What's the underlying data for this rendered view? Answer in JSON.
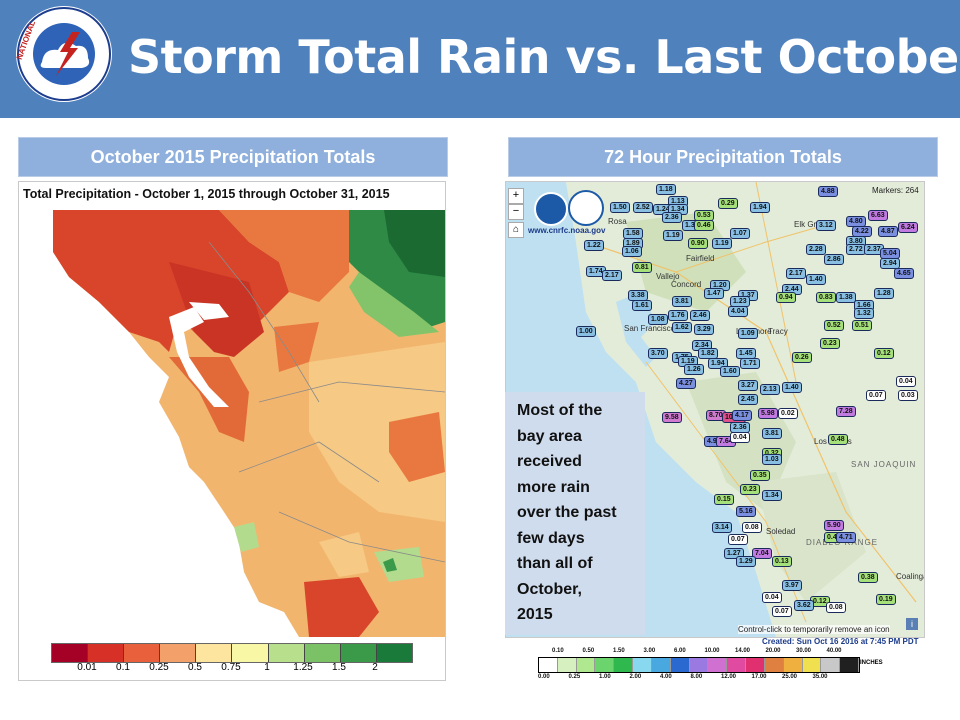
{
  "slide": {
    "title": "Storm Total Rain vs. Last October",
    "logo_text": "NATIONAL WEATHER SERVICE"
  },
  "left_panel": {
    "label": "October 2015 Precipitation Totals",
    "map_title": "Total Precipitation - October 1, 2015 through October 31, 2015",
    "legend_labels": [
      "0.01",
      "0.1",
      "0.25",
      "0.5",
      "0.75",
      "1",
      "1.25",
      "1.5",
      "2"
    ],
    "legend_colors": [
      "#a50026",
      "#d73027",
      "#e8603c",
      "#f4a06a",
      "#fde5a0",
      "#f7f7a6",
      "#b8e08c",
      "#7ac265",
      "#3a9a4a",
      "#1a7a3a"
    ]
  },
  "right_panel": {
    "label": "72 Hour Precipitation Totals",
    "markers_label": "Markers: 264",
    "source_url": "www.cnrfc.noaa.gov",
    "hint": "Control-click to temporarily remove an icon",
    "created": "Created: Sun Oct 16 2016 at 7:45 PM PDT",
    "callout_lines": [
      "Most of the",
      "bay area",
      "received",
      "more rain",
      "over the past",
      "few days",
      "than  all of",
      "October,",
      "2015"
    ],
    "place_labels": [
      "Rosa",
      "Vallejo",
      "Concord",
      "San Francisco",
      "Livermore",
      "Tracy",
      "Elk Grove",
      "Fairfield",
      "Soledad",
      "DIABLO RANGE",
      "SAN JOAQUIN",
      "Coalinga",
      "Los Banos"
    ],
    "scale_top": [
      "0.10",
      "0.50",
      "1.50",
      "3.00",
      "6.00",
      "10.00",
      "14.00",
      "20.00",
      "30.00",
      "40.00"
    ],
    "scale_bottom": [
      "0.00",
      "0.25",
      "1.00",
      "2.00",
      "4.00",
      "8.00",
      "12.00",
      "17.00",
      "25.00",
      "35.00"
    ],
    "scale_unit": "INCHES",
    "zoom_in": "+",
    "zoom_out": "−",
    "info": "i",
    "markers": [
      {
        "v": "1.18",
        "c": "#88bfe3"
      },
      {
        "v": "1.13",
        "c": "#88bfe3"
      },
      {
        "v": "1.50",
        "c": "#88bfe3"
      },
      {
        "v": "2.52",
        "c": "#88bfe3"
      },
      {
        "v": "1.24",
        "c": "#88bfe3"
      },
      {
        "v": "1.34",
        "c": "#88bfe3"
      },
      {
        "v": "0.29",
        "c": "#a6e07a"
      },
      {
        "v": "1.94",
        "c": "#88bfe3"
      },
      {
        "v": "4.88",
        "c": "#7a8fe0"
      },
      {
        "v": "2.36",
        "c": "#88bfe3"
      },
      {
        "v": "0.53",
        "c": "#a6e07a"
      },
      {
        "v": "3.12",
        "c": "#88bfe3"
      },
      {
        "v": "4.80",
        "c": "#7a8fe0"
      },
      {
        "v": "6.63",
        "c": "#c07ae0"
      },
      {
        "v": "1.22",
        "c": "#88bfe3"
      },
      {
        "v": "1.58",
        "c": "#88bfe3"
      },
      {
        "v": "1.89",
        "c": "#88bfe3"
      },
      {
        "v": "1.31",
        "c": "#88bfe3"
      },
      {
        "v": "0.46",
        "c": "#a6e07a"
      },
      {
        "v": "1.07",
        "c": "#88bfe3"
      },
      {
        "v": "4.22",
        "c": "#7a8fe0"
      },
      {
        "v": "4.87",
        "c": "#7a8fe0"
      },
      {
        "v": "6.24",
        "c": "#c07ae0"
      },
      {
        "v": "1.06",
        "c": "#88bfe3"
      },
      {
        "v": "1.19",
        "c": "#88bfe3"
      },
      {
        "v": "0.90",
        "c": "#a6e07a"
      },
      {
        "v": "1.19",
        "c": "#88bfe3"
      },
      {
        "v": "3.80",
        "c": "#88bfe3"
      },
      {
        "v": "2.28",
        "c": "#88bfe3"
      },
      {
        "v": "2.86",
        "c": "#88bfe3"
      },
      {
        "v": "2.72",
        "c": "#88bfe3"
      },
      {
        "v": "2.37",
        "c": "#88bfe3"
      },
      {
        "v": "5.04",
        "c": "#7a8fe0"
      },
      {
        "v": "0.81",
        "c": "#a6e07a"
      },
      {
        "v": "1.74",
        "c": "#88bfe3"
      },
      {
        "v": "2.17",
        "c": "#88bfe3"
      },
      {
        "v": "2.94",
        "c": "#88bfe3"
      },
      {
        "v": "2.17",
        "c": "#88bfe3"
      },
      {
        "v": "1.40",
        "c": "#88bfe3"
      },
      {
        "v": "4.65",
        "c": "#7a8fe0"
      },
      {
        "v": "1.20",
        "c": "#88bfe3"
      },
      {
        "v": "2.44",
        "c": "#88bfe3"
      },
      {
        "v": "1.47",
        "c": "#88bfe3"
      },
      {
        "v": "1.37",
        "c": "#88bfe3"
      },
      {
        "v": "3.38",
        "c": "#88bfe3"
      },
      {
        "v": "1.61",
        "c": "#88bfe3"
      },
      {
        "v": "3.81",
        "c": "#88bfe3"
      },
      {
        "v": "1.23",
        "c": "#88bfe3"
      },
      {
        "v": "0.94",
        "c": "#a6e07a"
      },
      {
        "v": "0.83",
        "c": "#a6e07a"
      },
      {
        "v": "1.38",
        "c": "#88bfe3"
      },
      {
        "v": "1.28",
        "c": "#88bfe3"
      },
      {
        "v": "1.08",
        "c": "#88bfe3"
      },
      {
        "v": "1.76",
        "c": "#88bfe3"
      },
      {
        "v": "2.46",
        "c": "#88bfe3"
      },
      {
        "v": "4.04",
        "c": "#88bfe3"
      },
      {
        "v": "1.66",
        "c": "#88bfe3"
      },
      {
        "v": "1.32",
        "c": "#88bfe3"
      },
      {
        "v": "1.00",
        "c": "#88bfe3"
      },
      {
        "v": "1.62",
        "c": "#88bfe3"
      },
      {
        "v": "3.29",
        "c": "#88bfe3"
      },
      {
        "v": "0.52",
        "c": "#a6e07a"
      },
      {
        "v": "0.51",
        "c": "#a6e07a"
      },
      {
        "v": "1.09",
        "c": "#88bfe3"
      },
      {
        "v": "2.34",
        "c": "#88bfe3"
      },
      {
        "v": "0.23",
        "c": "#a6e07a"
      },
      {
        "v": "3.70",
        "c": "#88bfe3"
      },
      {
        "v": "1.82",
        "c": "#88bfe3"
      },
      {
        "v": "1.45",
        "c": "#88bfe3"
      },
      {
        "v": "0.12",
        "c": "#a6e07a"
      },
      {
        "v": "1.75",
        "c": "#88bfe3"
      },
      {
        "v": "1.19",
        "c": "#88bfe3"
      },
      {
        "v": "1.94",
        "c": "#88bfe3"
      },
      {
        "v": "1.71",
        "c": "#88bfe3"
      },
      {
        "v": "0.26",
        "c": "#a6e07a"
      },
      {
        "v": "1.26",
        "c": "#88bfe3"
      },
      {
        "v": "1.60",
        "c": "#88bfe3"
      },
      {
        "v": "0.04",
        "c": "#ffffff"
      },
      {
        "v": "4.27",
        "c": "#7a8fe0"
      },
      {
        "v": "3.27",
        "c": "#88bfe3"
      },
      {
        "v": "2.13",
        "c": "#88bfe3"
      },
      {
        "v": "1.40",
        "c": "#88bfe3"
      },
      {
        "v": "0.07",
        "c": "#ffffff"
      },
      {
        "v": "0.03",
        "c": "#ffffff"
      },
      {
        "v": "2.45",
        "c": "#88bfe3"
      },
      {
        "v": "9.58",
        "c": "#d07ad0"
      },
      {
        "v": "8.70",
        "c": "#d07ad0"
      },
      {
        "v": "10.95",
        "c": "#e0508a"
      },
      {
        "v": "4.17",
        "c": "#7a8fe0"
      },
      {
        "v": "5.98",
        "c": "#c07ae0"
      },
      {
        "v": "0.02",
        "c": "#ffffff"
      },
      {
        "v": "7.28",
        "c": "#c07ae0"
      },
      {
        "v": "2.36",
        "c": "#88bfe3"
      },
      {
        "v": "3.81",
        "c": "#88bfe3"
      },
      {
        "v": "4.94",
        "c": "#7a8fe0"
      },
      {
        "v": "7.64",
        "c": "#c07ae0"
      },
      {
        "v": "0.04",
        "c": "#ffffff"
      },
      {
        "v": "0.48",
        "c": "#a6e07a"
      },
      {
        "v": "0.32",
        "c": "#a6e07a"
      },
      {
        "v": "1.03",
        "c": "#88bfe3"
      },
      {
        "v": "0.35",
        "c": "#a6e07a"
      },
      {
        "v": "0.23",
        "c": "#a6e07a"
      },
      {
        "v": "1.34",
        "c": "#88bfe3"
      },
      {
        "v": "0.15",
        "c": "#a6e07a"
      },
      {
        "v": "5.16",
        "c": "#7a8fe0"
      },
      {
        "v": "3.14",
        "c": "#88bfe3"
      },
      {
        "v": "0.08",
        "c": "#ffffff"
      },
      {
        "v": "5.90",
        "c": "#c07ae0"
      },
      {
        "v": "0.07",
        "c": "#ffffff"
      },
      {
        "v": "0.41",
        "c": "#a6e07a"
      },
      {
        "v": "4.71",
        "c": "#7a8fe0"
      },
      {
        "v": "1.27",
        "c": "#88bfe3"
      },
      {
        "v": "7.04",
        "c": "#c07ae0"
      },
      {
        "v": "1.29",
        "c": "#88bfe3"
      },
      {
        "v": "0.13",
        "c": "#a6e07a"
      },
      {
        "v": "0.38",
        "c": "#a6e07a"
      },
      {
        "v": "3.97",
        "c": "#88bfe3"
      },
      {
        "v": "0.04",
        "c": "#ffffff"
      },
      {
        "v": "0.12",
        "c": "#a6e07a"
      },
      {
        "v": "0.19",
        "c": "#a6e07a"
      },
      {
        "v": "3.62",
        "c": "#88bfe3"
      },
      {
        "v": "0.07",
        "c": "#ffffff"
      },
      {
        "v": "0.08",
        "c": "#ffffff"
      }
    ]
  }
}
